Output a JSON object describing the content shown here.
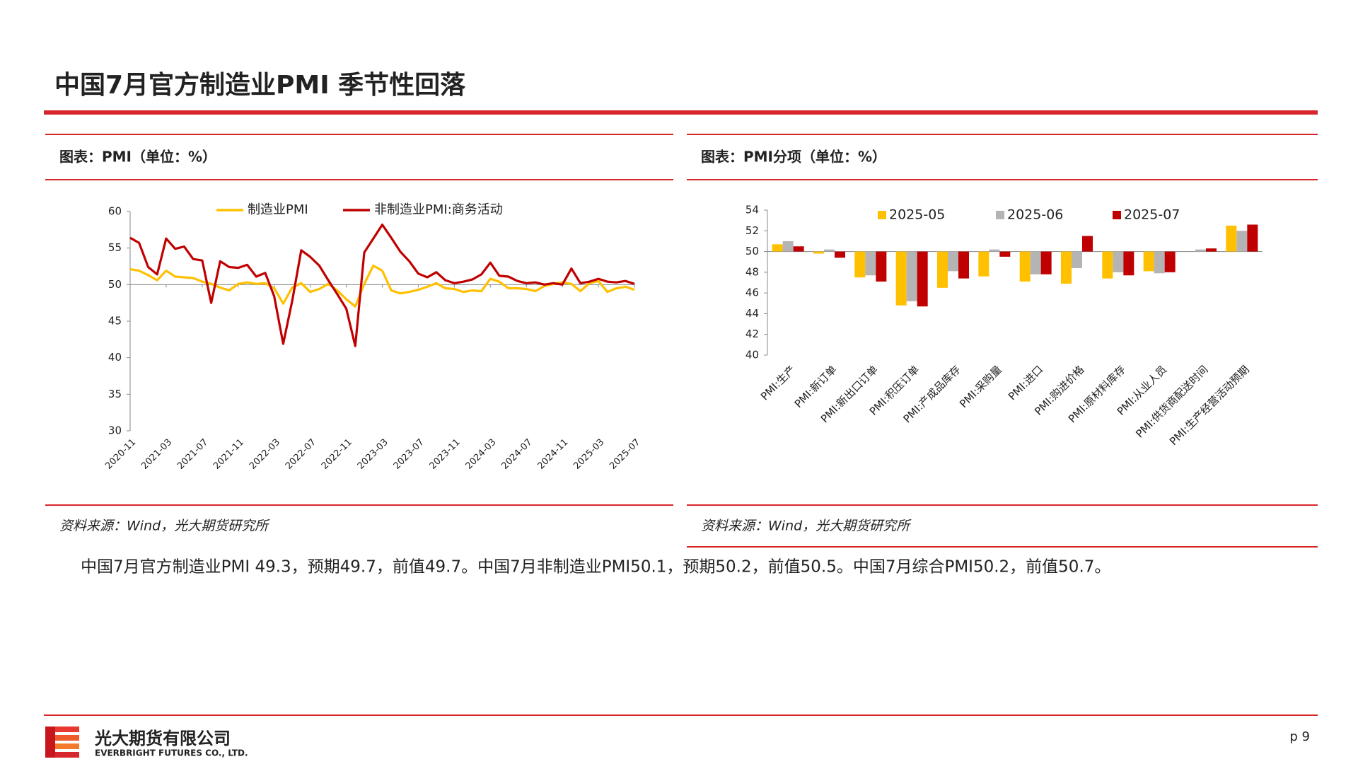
{
  "page": {
    "title": "中国7月官方制造业PMI 季节性回落",
    "panels": [
      {
        "title": "图表：PMI（单位：%）",
        "source": "资料来源：Wind，光大期货研究所"
      },
      {
        "title": "图表：PMI分项（单位：%）",
        "source": "资料来源：Wind，光大期货研究所"
      }
    ],
    "summary": "中国7月官方制造业PMI 49.3，预期49.7，前值49.7。中国7月非制造业PMI50.1，预期50.2，前值50.5。中国7月综合PMI50.2，前值50.7。",
    "company": "光大期货有限公司",
    "company_en": "EVERBRIGHT FUTURES CO., LTD.",
    "page_number": "p 9"
  },
  "chart_data": [
    {
      "type": "line",
      "categories": [
        "2020-11",
        null,
        null,
        null,
        "2021-03",
        null,
        null,
        null,
        "2021-07",
        null,
        null,
        null,
        "2021-11",
        null,
        null,
        null,
        "2022-03",
        null,
        null,
        null,
        "2022-07",
        null,
        null,
        null,
        "2022-11",
        null,
        null,
        null,
        "2023-03",
        null,
        null,
        null,
        "2023-07",
        null,
        null,
        null,
        "2023-11",
        null,
        null,
        null,
        "2024-03",
        null,
        null,
        null,
        "2024-07",
        null,
        null,
        null,
        "2024-11",
        null,
        null,
        null,
        "2025-03",
        null,
        null,
        null,
        "2025-07"
      ],
      "series": [
        {
          "name": "制造业PMI",
          "color": "#FFC000",
          "values": [
            52.1,
            51.9,
            51.3,
            50.6,
            51.9,
            51.1,
            51.0,
            50.9,
            50.4,
            50.1,
            49.6,
            49.2,
            50.1,
            50.3,
            50.1,
            50.2,
            49.5,
            47.4,
            49.6,
            50.2,
            49.0,
            49.4,
            50.1,
            49.2,
            48.0,
            47.0,
            50.1,
            52.6,
            51.9,
            49.2,
            48.8,
            49.0,
            49.3,
            49.7,
            50.2,
            49.5,
            49.4,
            49.0,
            49.2,
            49.1,
            50.8,
            50.4,
            49.5,
            49.5,
            49.4,
            49.1,
            49.8,
            50.1,
            50.3,
            50.1,
            49.1,
            50.2,
            50.5,
            49.0,
            49.5,
            49.7,
            49.3
          ]
        },
        {
          "name": "非制造业PMI:商务活动",
          "color": "#C00000",
          "values": [
            56.4,
            55.7,
            52.4,
            51.4,
            56.3,
            54.9,
            55.2,
            53.5,
            53.3,
            47.5,
            53.2,
            52.4,
            52.3,
            52.7,
            51.1,
            51.6,
            48.4,
            41.9,
            47.8,
            54.7,
            53.8,
            52.6,
            50.6,
            48.7,
            46.7,
            41.6,
            54.4,
            56.3,
            58.2,
            56.4,
            54.5,
            53.2,
            51.5,
            51.0,
            51.7,
            50.6,
            50.2,
            50.4,
            50.7,
            51.4,
            53.0,
            51.2,
            51.1,
            50.5,
            50.2,
            50.3,
            50.0,
            50.2,
            50.0,
            52.2,
            50.2,
            50.4,
            50.8,
            50.4,
            50.3,
            50.5,
            50.1
          ]
        }
      ],
      "ylim": [
        30,
        60
      ],
      "yticks": [
        30,
        35,
        40,
        45,
        50,
        55,
        60
      ],
      "baseline": 50,
      "grid": false,
      "legend": "top"
    },
    {
      "type": "bar",
      "categories": [
        "PMI:生产",
        "PMI:新订单",
        "PMI:新出口订单",
        "PMI:积压订单",
        "PMI:产成品库存",
        "PMI:采购量",
        "PMI:进口",
        "PMI:购进价格",
        "PMI:原材料库存",
        "PMI:从业人员",
        "PMI:供货商配送时间",
        "PMI:生产经营活动预期"
      ],
      "series": [
        {
          "name": "2025-05",
          "color": "#FFC000",
          "values": [
            50.7,
            49.8,
            47.5,
            44.8,
            46.5,
            47.6,
            47.1,
            46.9,
            47.4,
            48.1,
            50.0,
            52.5
          ]
        },
        {
          "name": "2025-06",
          "color": "#B4B4B4",
          "values": [
            51.0,
            50.2,
            47.7,
            45.2,
            48.1,
            50.2,
            47.8,
            48.4,
            48.0,
            47.9,
            50.2,
            52.0
          ]
        },
        {
          "name": "2025-07",
          "color": "#C00000",
          "values": [
            50.5,
            49.4,
            47.1,
            44.7,
            47.4,
            49.5,
            47.8,
            51.5,
            47.7,
            48.0,
            50.3,
            52.6
          ]
        }
      ],
      "ylim": [
        40,
        54
      ],
      "yticks": [
        40,
        42,
        44,
        46,
        48,
        50,
        52,
        54
      ],
      "baseline": 50,
      "grid": false,
      "legend": "top"
    }
  ]
}
